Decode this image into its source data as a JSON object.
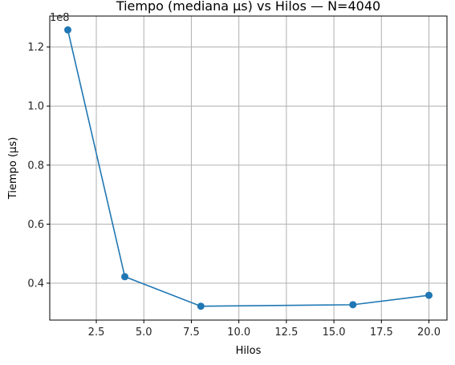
{
  "chart_data": {
    "type": "line",
    "title": "Tiempo (mediana µs) vs Hilos — N=4040",
    "xlabel": "Hilos",
    "ylabel": "Tiempo (µs)",
    "y_offset_text": "1e8",
    "xlim": [
      0.05,
      20.95
    ],
    "ylim": [
      0.275,
      1.305
    ],
    "x_ticks": [
      2.5,
      5.0,
      7.5,
      10.0,
      12.5,
      15.0,
      17.5,
      20.0
    ],
    "x_tick_labels": [
      "2.5",
      "5.0",
      "7.5",
      "10.0",
      "12.5",
      "15.0",
      "17.5",
      "20.0"
    ],
    "y_ticks": [
      0.4,
      0.6,
      0.8,
      1.0,
      1.2
    ],
    "y_tick_labels": [
      "0.4",
      "0.6",
      "0.8",
      "1.0",
      "1.2"
    ],
    "grid": true,
    "series": [
      {
        "color": "#1f77b4",
        "marker": "circle",
        "x": [
          1,
          4,
          8,
          16,
          20
        ],
        "y": [
          1.258,
          0.422,
          0.322,
          0.327,
          0.359
        ]
      }
    ]
  }
}
